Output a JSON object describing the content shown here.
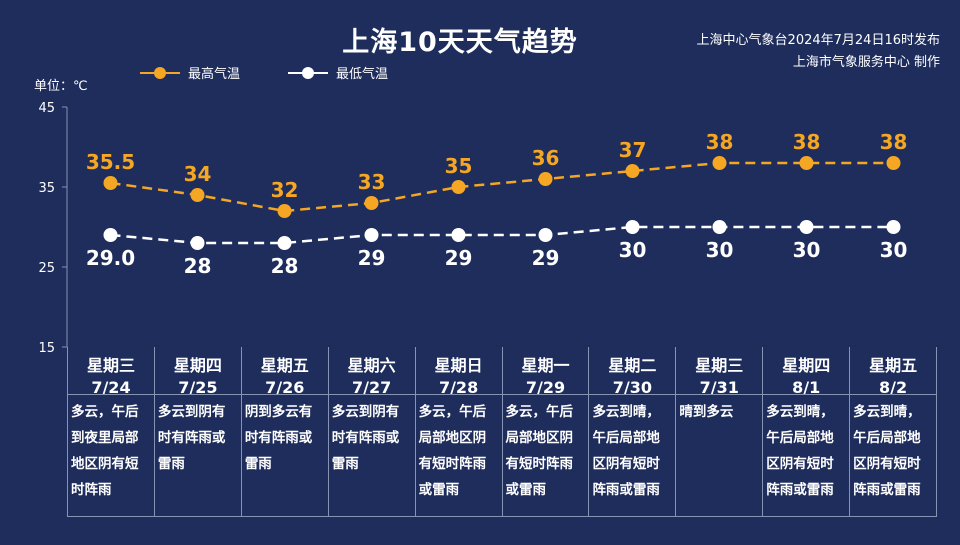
{
  "header": {
    "title": "上海10天天气趋势",
    "issuer_line1": "上海中心气象台2024年7月24日16时发布",
    "issuer_line2": "上海市气象服务中心 制作",
    "unit": "单位：℃"
  },
  "colors": {
    "background": "#1e2d5c",
    "high_line": "#f5a623",
    "low_line": "#ffffff"
  },
  "chart_data": {
    "type": "line",
    "ylim": [
      15,
      45
    ],
    "y_ticks": [
      "45",
      "35",
      "25",
      "15"
    ],
    "legend_position": "top-left",
    "series": [
      {
        "name": "最高气温",
        "values": [
          35.5,
          34,
          32,
          33,
          35,
          36,
          37,
          38,
          38,
          38
        ],
        "labels": [
          "35.5",
          "34",
          "32",
          "33",
          "35",
          "36",
          "37",
          "38",
          "38",
          "38"
        ]
      },
      {
        "name": "最低气温",
        "values": [
          29.0,
          28,
          28,
          29,
          29,
          29,
          30,
          30,
          30,
          30
        ],
        "labels": [
          "29.0",
          "28",
          "28",
          "29",
          "29",
          "29",
          "30",
          "30",
          "30",
          "30"
        ]
      }
    ]
  },
  "days": [
    {
      "weekday": "星期三",
      "date": "7/24",
      "desc": "多云，午后到夜里局部地区阴有短时阵雨"
    },
    {
      "weekday": "星期四",
      "date": "7/25",
      "desc": "多云到阴有时有阵雨或雷雨"
    },
    {
      "weekday": "星期五",
      "date": "7/26",
      "desc": "阴到多云有时有阵雨或雷雨"
    },
    {
      "weekday": "星期六",
      "date": "7/27",
      "desc": "多云到阴有时有阵雨或雷雨"
    },
    {
      "weekday": "星期日",
      "date": "7/28",
      "desc": "多云，午后局部地区阴有短时阵雨或雷雨"
    },
    {
      "weekday": "星期一",
      "date": "7/29",
      "desc": "多云，午后局部地区阴有短时阵雨或雷雨"
    },
    {
      "weekday": "星期二",
      "date": "7/30",
      "desc": "多云到晴，午后局部地区阴有短时阵雨或雷雨"
    },
    {
      "weekday": "星期三",
      "date": "7/31",
      "desc": "晴到多云"
    },
    {
      "weekday": "星期四",
      "date": "8/1",
      "desc": "多云到晴，午后局部地区阴有短时阵雨或雷雨"
    },
    {
      "weekday": "星期五",
      "date": "8/2",
      "desc": "多云到晴，午后局部地区阴有短时阵雨或雷雨"
    }
  ]
}
